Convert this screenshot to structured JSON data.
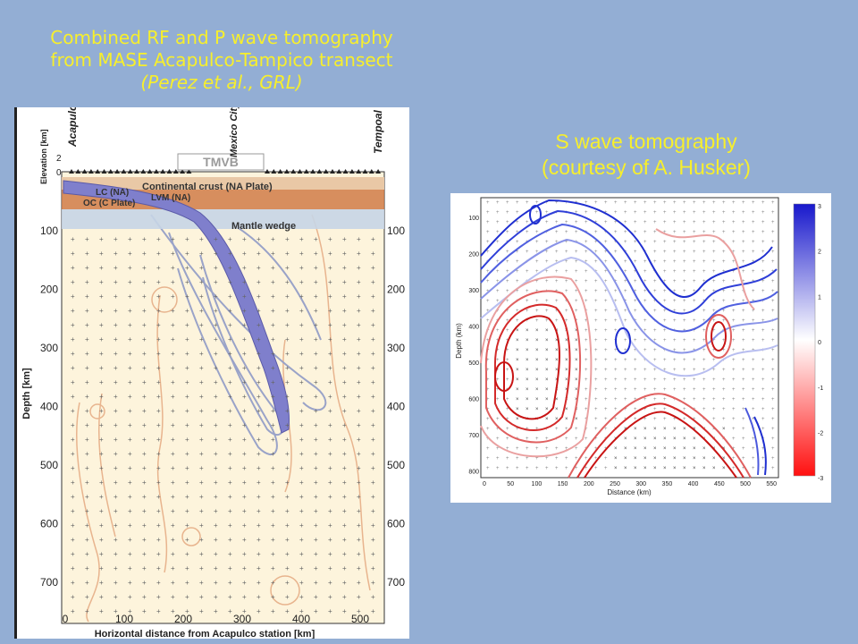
{
  "captions": {
    "left_line1": "Combined RF and P wave tomography",
    "left_line2": "from MASE Acapulco-Tampico transect",
    "left_line3": "(Perez et al., GRL)",
    "right_line1": "S wave tomography",
    "right_line2": "(courtesy of A. Husker)"
  },
  "left_figure": {
    "station_left": "Acapulco",
    "station_right": "Tempoal",
    "city": "Mexico City",
    "tmvb": "TMVB",
    "elevation_label": "Elevation [km]",
    "elev_tick_top": "2",
    "elev_tick_bottom": "0",
    "crust_label": "Continental crust (NA Plate)",
    "lc_label": "LC (NA)",
    "lvm_label": "LVM (NA)",
    "oc_label": "OC (C Plate)",
    "mantle_label": "Mantle wedge",
    "ylabel": "Depth [km]",
    "xlabel": "Horizontal distance from Acapulco station [km]",
    "y_ticks": [
      "100",
      "200",
      "300",
      "400",
      "500",
      "600",
      "700"
    ],
    "x_ticks": [
      "0",
      "100",
      "200",
      "300",
      "400",
      "500"
    ]
  },
  "right_figure": {
    "ylabel": "Depth (km)",
    "xlabel": "Distance (km)",
    "y_ticks": [
      "100",
      "200",
      "300",
      "400",
      "500",
      "600",
      "700",
      "800"
    ],
    "x_ticks": [
      "0",
      "50",
      "100",
      "150",
      "200",
      "250",
      "300",
      "350",
      "400",
      "450",
      "500",
      "550"
    ],
    "colorbar_ticks": [
      "3",
      "2",
      "1",
      "0",
      "-1",
      "-2",
      "-3"
    ],
    "colors": {
      "fast": "#1f2fd0",
      "slow": "#dc1a1a"
    }
  }
}
